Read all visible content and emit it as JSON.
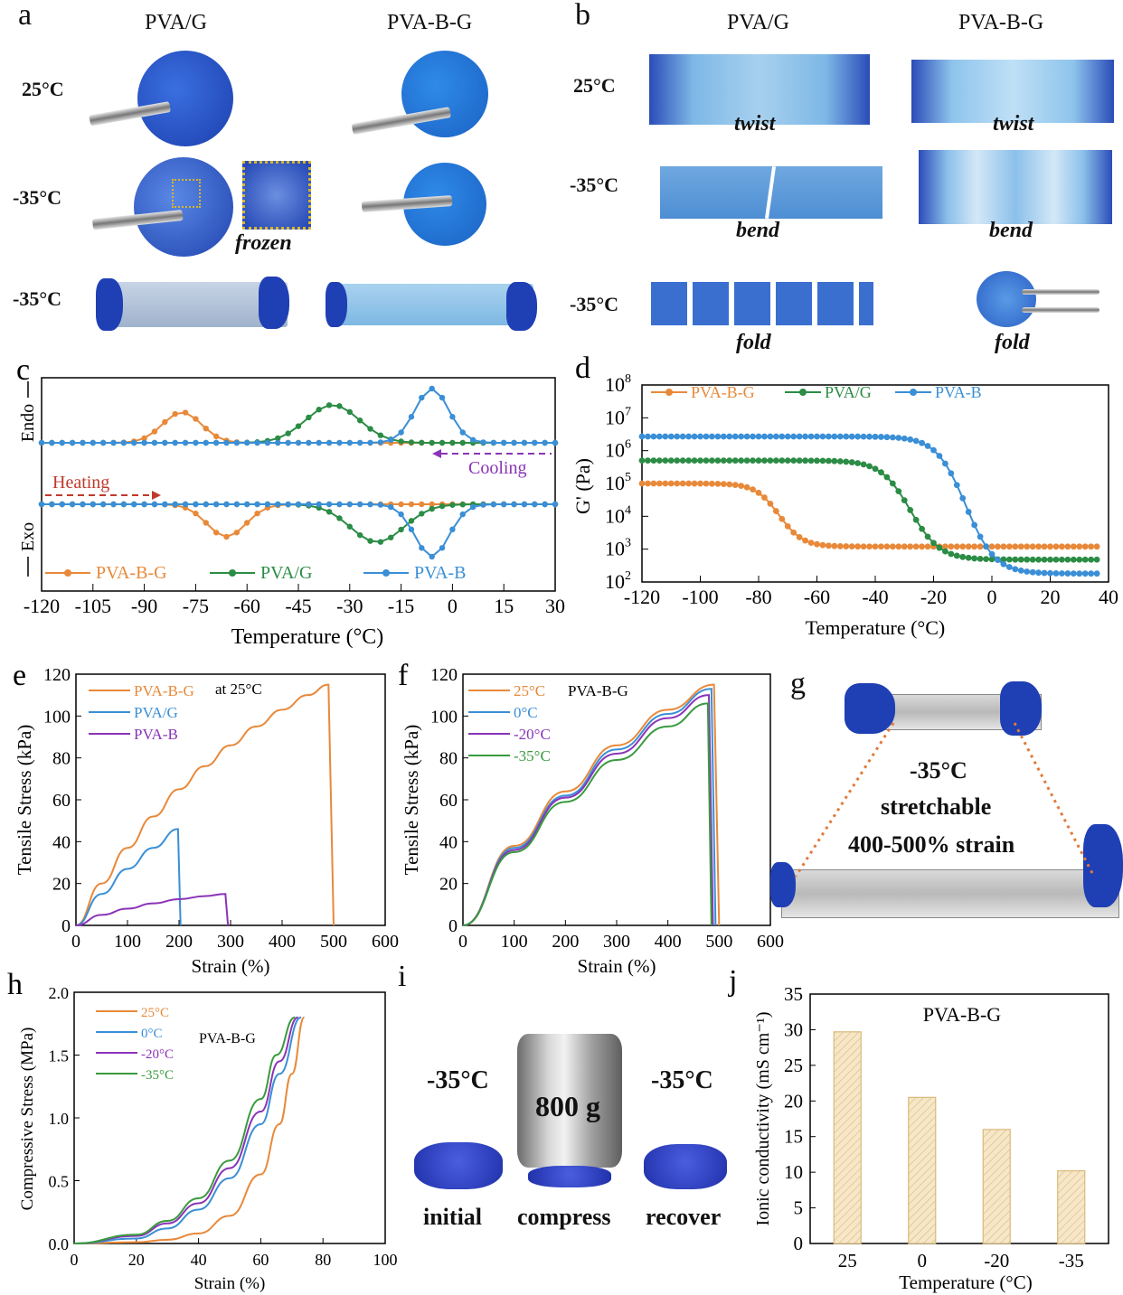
{
  "panel_a": {
    "label": "a",
    "col1": "PVA/G",
    "col2": "PVA-B-G",
    "rows": [
      "25°C",
      "-35°C",
      "-35°C"
    ],
    "caption_frozen": "frozen"
  },
  "panel_b": {
    "label": "b",
    "col1": "PVA/G",
    "col2": "PVA-B-G",
    "rows": [
      "25°C",
      "-35°C",
      "-35°C"
    ],
    "captions": [
      "twist",
      "bend",
      "fold"
    ]
  },
  "panel_g": {
    "label": "g",
    "text1": "-35°C",
    "text2": "stretchable",
    "text3": "400-500% strain"
  },
  "panel_i": {
    "label": "i",
    "temp_left": "-35°C",
    "temp_right": "-35°C",
    "weight": "800 g",
    "captions": [
      "initial",
      "compress",
      "recover"
    ]
  },
  "colors": {
    "orange": "#e8893a",
    "green": "#2b8c45",
    "blue": "#3a8fd6",
    "purple": "#8a34b8",
    "darkgreen": "#3a9a3e",
    "photo_blue": "#2d6fc9"
  },
  "chart_data": [
    {
      "id": "c",
      "label": "c",
      "type": "line",
      "xlabel": "Temperature (°C)",
      "ylabel_top": "Endo",
      "ylabel_bottom": "Exo",
      "xlim": [
        -120,
        30
      ],
      "xticks": [
        -120,
        -105,
        -90,
        -75,
        -60,
        -45,
        -30,
        -15,
        0,
        15,
        30
      ],
      "annotations": [
        "Heating",
        "Cooling"
      ],
      "series": [
        {
          "name": "PVA-B-G",
          "color": "#e8893a",
          "heating_peak": -79,
          "cooling_peak": -66
        },
        {
          "name": "PVA/G",
          "color": "#2b8c45",
          "heating_peak": -35,
          "cooling_peak": -22
        },
        {
          "name": "PVA-B",
          "color": "#3a8fd6",
          "heating_peak": -6,
          "cooling_peak": -6
        }
      ]
    },
    {
      "id": "d",
      "label": "d",
      "type": "line",
      "xlabel": "Temperature (°C)",
      "ylabel": "G' (Pa)",
      "yscale": "log",
      "xlim": [
        -120,
        40
      ],
      "ylim": [
        100,
        100000000
      ],
      "xticks": [
        -120,
        -100,
        -80,
        -60,
        -40,
        -20,
        0,
        20,
        40
      ],
      "yticks": [
        "10^2",
        "10^3",
        "10^4",
        "10^5",
        "10^6",
        "10^7",
        "10^8"
      ],
      "series": [
        {
          "name": "PVA-B-G",
          "color": "#e8893a",
          "plateau": 100000,
          "end": 1200,
          "transition": -73
        },
        {
          "name": "PVA/G",
          "color": "#2b8c45",
          "plateau": 500000,
          "end": 480,
          "transition": -28
        },
        {
          "name": "PVA-B",
          "color": "#3a8fd6",
          "plateau": 2700000,
          "end": 180,
          "transition": -9
        }
      ]
    },
    {
      "id": "e",
      "label": "e",
      "type": "line",
      "xlabel": "Strain (%)",
      "ylabel": "Tensile Stress (kPa)",
      "xlim": [
        0,
        600
      ],
      "ylim": [
        0,
        120
      ],
      "xticks": [
        0,
        100,
        200,
        300,
        400,
        500,
        600
      ],
      "yticks": [
        0,
        20,
        40,
        60,
        80,
        100,
        120
      ],
      "note": "at 25°C",
      "series": [
        {
          "name": "PVA-B-G",
          "color": "#e8893a",
          "points": [
            [
              0,
              0
            ],
            [
              50,
              20
            ],
            [
              100,
              37
            ],
            [
              150,
              52
            ],
            [
              200,
              65
            ],
            [
              250,
              76
            ],
            [
              300,
              86
            ],
            [
              350,
              95
            ],
            [
              400,
              103
            ],
            [
              450,
              110
            ],
            [
              490,
              115
            ],
            [
              500,
              0
            ]
          ]
        },
        {
          "name": "PVA/G",
          "color": "#3a8fd6",
          "points": [
            [
              0,
              0
            ],
            [
              50,
              15
            ],
            [
              100,
              27
            ],
            [
              150,
              37
            ],
            [
              198,
              46
            ],
            [
              203,
              0
            ]
          ]
        },
        {
          "name": "PVA-B",
          "color": "#8a34b8",
          "points": [
            [
              0,
              0
            ],
            [
              50,
              5
            ],
            [
              100,
              8
            ],
            [
              150,
              10.5
            ],
            [
              200,
              12.5
            ],
            [
              250,
              14
            ],
            [
              290,
              15
            ],
            [
              295,
              0
            ]
          ]
        }
      ]
    },
    {
      "id": "f",
      "label": "f",
      "type": "line",
      "xlabel": "Strain (%)",
      "ylabel": "Tensile Stress (kPa)",
      "xlim": [
        0,
        600
      ],
      "ylim": [
        0,
        120
      ],
      "xticks": [
        0,
        100,
        200,
        300,
        400,
        500,
        600
      ],
      "yticks": [
        0,
        20,
        40,
        60,
        80,
        100,
        120
      ],
      "note": "PVA-B-G",
      "series": [
        {
          "name": "25°C",
          "color": "#e8893a",
          "points": [
            [
              0,
              0
            ],
            [
              100,
              38
            ],
            [
              200,
              64
            ],
            [
              300,
              86
            ],
            [
              400,
              103
            ],
            [
              490,
              115
            ],
            [
              500,
              0
            ]
          ]
        },
        {
          "name": "0°C",
          "color": "#3a8fd6",
          "points": [
            [
              0,
              0
            ],
            [
              100,
              37
            ],
            [
              200,
              62
            ],
            [
              300,
              84
            ],
            [
              400,
              101
            ],
            [
              485,
              113
            ],
            [
              493,
              0
            ]
          ]
        },
        {
          "name": "-20°C",
          "color": "#8a34b8",
          "points": [
            [
              0,
              0
            ],
            [
              100,
              36
            ],
            [
              200,
              61
            ],
            [
              300,
              82
            ],
            [
              400,
              99
            ],
            [
              480,
              110
            ],
            [
              488,
              0
            ]
          ]
        },
        {
          "name": "-35°C",
          "color": "#3a9a3e",
          "points": [
            [
              0,
              0
            ],
            [
              100,
              35
            ],
            [
              200,
              59
            ],
            [
              300,
              79
            ],
            [
              400,
              95
            ],
            [
              478,
              106
            ],
            [
              485,
              0
            ]
          ]
        }
      ]
    },
    {
      "id": "h",
      "label": "h",
      "type": "line",
      "xlabel": "Strain (%)",
      "ylabel": "Compressive Stress (MPa)",
      "xlim": [
        0,
        100
      ],
      "ylim": [
        0,
        2.0
      ],
      "xticks": [
        0,
        20,
        40,
        60,
        80,
        100
      ],
      "yticks": [
        "0.0",
        "0.5",
        "1.0",
        "1.5",
        "2.0"
      ],
      "note": "PVA-B-G",
      "series": [
        {
          "name": "25°C",
          "color": "#e8893a",
          "points": [
            [
              0,
              0
            ],
            [
              20,
              0.01
            ],
            [
              30,
              0.03
            ],
            [
              40,
              0.08
            ],
            [
              50,
              0.22
            ],
            [
              60,
              0.55
            ],
            [
              66,
              0.95
            ],
            [
              70,
              1.35
            ],
            [
              74,
              1.8
            ]
          ]
        },
        {
          "name": "0°C",
          "color": "#3a8fd6",
          "points": [
            [
              0,
              0
            ],
            [
              20,
              0.04
            ],
            [
              30,
              0.12
            ],
            [
              40,
              0.27
            ],
            [
              50,
              0.52
            ],
            [
              60,
              0.95
            ],
            [
              66,
              1.35
            ],
            [
              73,
              1.8
            ]
          ]
        },
        {
          "name": "-20°C",
          "color": "#8a34b8",
          "points": [
            [
              0,
              0
            ],
            [
              20,
              0.06
            ],
            [
              30,
              0.16
            ],
            [
              40,
              0.32
            ],
            [
              50,
              0.6
            ],
            [
              60,
              1.05
            ],
            [
              66,
              1.45
            ],
            [
              72,
              1.8
            ]
          ]
        },
        {
          "name": "-35°C",
          "color": "#3a9a3e",
          "points": [
            [
              0,
              0
            ],
            [
              20,
              0.07
            ],
            [
              30,
              0.18
            ],
            [
              40,
              0.36
            ],
            [
              50,
              0.66
            ],
            [
              60,
              1.15
            ],
            [
              65,
              1.5
            ],
            [
              71,
              1.8
            ]
          ]
        }
      ]
    },
    {
      "id": "j",
      "label": "j",
      "type": "bar",
      "xlabel": "Temperature (°C)",
      "ylabel": "Ionic conductivity (mS cm⁻¹)",
      "title": "PVA-B-G",
      "categories": [
        "25",
        "0",
        "-20",
        "-35"
      ],
      "values": [
        29.7,
        20.5,
        16.0,
        10.2
      ],
      "ylim": [
        0,
        35
      ],
      "yticks": [
        0,
        5,
        10,
        15,
        20,
        25,
        30,
        35
      ],
      "bar_color": "#f5e3c0",
      "edge_color": "#d8b97a"
    }
  ]
}
